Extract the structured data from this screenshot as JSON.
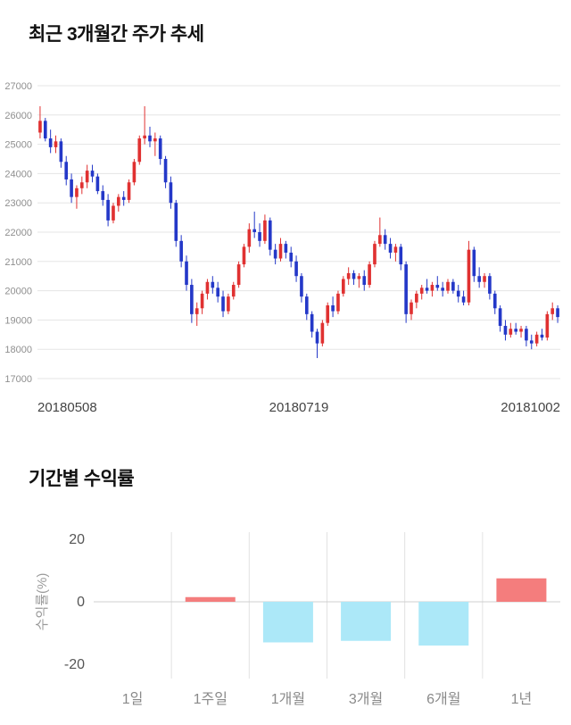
{
  "chart_data": [
    {
      "type": "candlestick",
      "title": "최근 3개월간 주가 추세",
      "ylim": [
        17000,
        27000
      ],
      "yticks": [
        27000,
        26000,
        25000,
        24000,
        23000,
        22000,
        21000,
        20000,
        19000,
        18000,
        17000
      ],
      "x_labels": [
        "20180508",
        "20180719",
        "20181002"
      ],
      "up_color": "#e03131",
      "down_color": "#2438c8",
      "grid_color": "#e5e5e5",
      "tick_color": "#8f8f8f",
      "xlabel_color": "#444444",
      "candles": [
        [
          25400,
          26300,
          25200,
          25800
        ],
        [
          25800,
          25900,
          25100,
          25200
        ],
        [
          25200,
          25500,
          24700,
          24900
        ],
        [
          24900,
          25300,
          24700,
          25100
        ],
        [
          25100,
          25200,
          24200,
          24400
        ],
        [
          24400,
          24600,
          23600,
          23800
        ],
        [
          23800,
          24000,
          23000,
          23200
        ],
        [
          23200,
          23600,
          22800,
          23500
        ],
        [
          23500,
          23900,
          23300,
          23700
        ],
        [
          23700,
          24300,
          23500,
          24100
        ],
        [
          24100,
          24300,
          23700,
          23900
        ],
        [
          23900,
          24000,
          23300,
          23400
        ],
        [
          23400,
          23600,
          22900,
          23100
        ],
        [
          23100,
          23300,
          22200,
          22400
        ],
        [
          22400,
          23000,
          22300,
          22900
        ],
        [
          22900,
          23300,
          22700,
          23200
        ],
        [
          23200,
          23400,
          22900,
          23100
        ],
        [
          23100,
          23800,
          23000,
          23700
        ],
        [
          23700,
          24500,
          23600,
          24400
        ],
        [
          24400,
          25300,
          24300,
          25200
        ],
        [
          25200,
          26300,
          25000,
          25300
        ],
        [
          25300,
          25600,
          24900,
          25100
        ],
        [
          25100,
          25400,
          24600,
          25200
        ],
        [
          25200,
          25300,
          24300,
          24500
        ],
        [
          24500,
          24600,
          23500,
          23700
        ],
        [
          23700,
          23900,
          22800,
          23000
        ],
        [
          23000,
          23100,
          21500,
          21700
        ],
        [
          21700,
          21900,
          20800,
          21000
        ],
        [
          21000,
          21200,
          20000,
          20200
        ],
        [
          20200,
          20400,
          18900,
          19200
        ],
        [
          19200,
          19600,
          18800,
          19400
        ],
        [
          19400,
          20000,
          19200,
          19900
        ],
        [
          19900,
          20400,
          19700,
          20300
        ],
        [
          20300,
          20500,
          19900,
          20100
        ],
        [
          20100,
          20300,
          19600,
          19800
        ],
        [
          19800,
          20000,
          19100,
          19300
        ],
        [
          19300,
          19900,
          19200,
          19800
        ],
        [
          19800,
          20300,
          19700,
          20200
        ],
        [
          20200,
          21000,
          20100,
          20900
        ],
        [
          20900,
          21600,
          20800,
          21500
        ],
        [
          21500,
          22300,
          21300,
          22100
        ],
        [
          22100,
          22700,
          21800,
          22000
        ],
        [
          22000,
          22300,
          21500,
          21700
        ],
        [
          21700,
          22600,
          21600,
          22400
        ],
        [
          22400,
          22500,
          21200,
          21400
        ],
        [
          21400,
          21600,
          20900,
          21100
        ],
        [
          21100,
          21800,
          21000,
          21600
        ],
        [
          21600,
          21700,
          21100,
          21300
        ],
        [
          21300,
          21500,
          20800,
          21000
        ],
        [
          21000,
          21200,
          20300,
          20500
        ],
        [
          20500,
          20600,
          19600,
          19800
        ],
        [
          19800,
          19900,
          19000,
          19200
        ],
        [
          19200,
          19300,
          18400,
          18600
        ],
        [
          18600,
          18700,
          17700,
          18200
        ],
        [
          18200,
          19000,
          18100,
          18900
        ],
        [
          18900,
          19600,
          18800,
          19500
        ],
        [
          19500,
          19800,
          19100,
          19300
        ],
        [
          19300,
          20000,
          19200,
          19900
        ],
        [
          19900,
          20500,
          19800,
          20400
        ],
        [
          20400,
          20800,
          20200,
          20600
        ],
        [
          20600,
          20700,
          20200,
          20400
        ],
        [
          20400,
          20600,
          20100,
          20500
        ],
        [
          20500,
          20700,
          20000,
          20200
        ],
        [
          20200,
          21000,
          20100,
          20900
        ],
        [
          20900,
          21700,
          20800,
          21600
        ],
        [
          21600,
          22500,
          21500,
          21900
        ],
        [
          21900,
          22100,
          21400,
          21600
        ],
        [
          21600,
          21800,
          21100,
          21300
        ],
        [
          21300,
          21600,
          21000,
          21500
        ],
        [
          21500,
          21600,
          20700,
          20900
        ],
        [
          20900,
          21000,
          18900,
          19200
        ],
        [
          19200,
          19700,
          19000,
          19600
        ],
        [
          19600,
          20000,
          19400,
          19900
        ],
        [
          19900,
          20200,
          19700,
          20100
        ],
        [
          20100,
          20400,
          19900,
          20000
        ],
        [
          20000,
          20300,
          19800,
          20200
        ],
        [
          20200,
          20500,
          20000,
          20100
        ],
        [
          20100,
          20300,
          19800,
          20000
        ],
        [
          20000,
          20400,
          19900,
          20300
        ],
        [
          20300,
          20400,
          19900,
          20000
        ],
        [
          20000,
          20200,
          19600,
          19800
        ],
        [
          19800,
          20000,
          19500,
          19600
        ],
        [
          19600,
          21700,
          19500,
          21400
        ],
        [
          21400,
          21500,
          20300,
          20500
        ],
        [
          20500,
          20800,
          20100,
          20300
        ],
        [
          20300,
          20600,
          20100,
          20500
        ],
        [
          20500,
          20600,
          19700,
          19900
        ],
        [
          19900,
          20000,
          19200,
          19400
        ],
        [
          19400,
          19500,
          18600,
          18800
        ],
        [
          18800,
          19000,
          18300,
          18500
        ],
        [
          18500,
          18900,
          18400,
          18700
        ],
        [
          18700,
          18900,
          18500,
          18600
        ],
        [
          18600,
          18800,
          18400,
          18700
        ],
        [
          18700,
          18800,
          18100,
          18300
        ],
        [
          18300,
          18500,
          18000,
          18200
        ],
        [
          18200,
          18600,
          18100,
          18500
        ],
        [
          18500,
          18700,
          18300,
          18400
        ],
        [
          18400,
          19300,
          18300,
          19200
        ],
        [
          19200,
          19600,
          19000,
          19400
        ],
        [
          19400,
          19500,
          18900,
          19100
        ]
      ]
    },
    {
      "type": "bar",
      "title": "기간별 수익률",
      "ylabel": "수익률(%)",
      "categories": [
        "1일",
        "1주일",
        "1개월",
        "3개월",
        "6개월",
        "1년"
      ],
      "values": [
        0,
        1.5,
        -13,
        -12.5,
        -14,
        7.5
      ],
      "ylim": [
        -20,
        20
      ],
      "yticks": [
        20,
        0,
        -20
      ],
      "pos_color": "#f47d7d",
      "neg_color": "#ace8f8",
      "grid_color": "#e2e2e2",
      "zero_color": "#cfcfcf",
      "tick_color": "#555555",
      "cat_color": "#8a8a8a",
      "ylabel_color": "#9a9a9a"
    }
  ]
}
